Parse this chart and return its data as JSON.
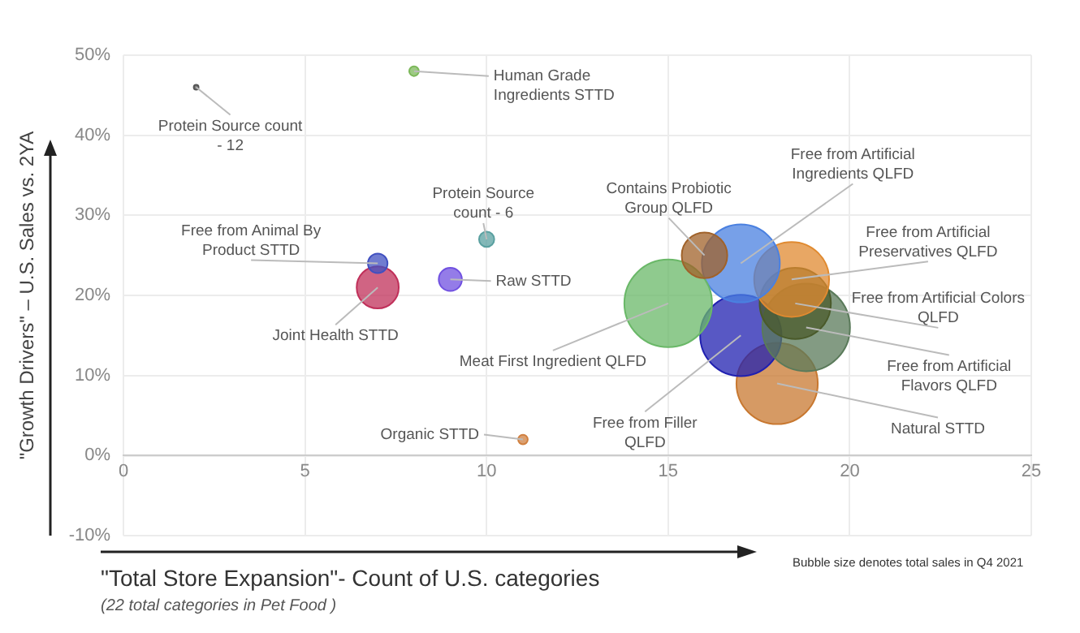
{
  "chart_data": {
    "type": "bubble",
    "xlabel": "\"Total Store Expansion\"- Count of U.S. categories",
    "ylabel": "\"Growth Drivers\" – U.S. Sales vs. 2YA",
    "annotations": [
      "(22 total categories in Pet Food )",
      "Bubble size denotes total sales in Q4 2021"
    ],
    "xlim": [
      0,
      25
    ],
    "xticks": [
      0,
      5,
      10,
      15,
      20,
      25
    ],
    "ylim": [
      -10,
      50
    ],
    "yticks": [
      {
        "value": -10,
        "label": "-10%"
      },
      {
        "value": 0,
        "label": "0%"
      },
      {
        "value": 10,
        "label": "10%"
      },
      {
        "value": 20,
        "label": "20%"
      },
      {
        "value": 30,
        "label": "30%"
      },
      {
        "value": 40,
        "label": "40%"
      },
      {
        "value": 50,
        "label": "50%"
      }
    ],
    "grid": true,
    "series": [
      {
        "name": "Protein Source count - 12",
        "color": "#555555",
        "x": [
          2
        ],
        "values": [
          46
        ],
        "sizes": [
          0.003
        ]
      },
      {
        "name": "Human Grade Ingredients STTD",
        "color": "#7cb85a",
        "x": [
          8
        ],
        "values": [
          48
        ],
        "sizes": [
          0.012
        ]
      },
      {
        "name": "Protein Source count - 6",
        "color": "#5aa0a0",
        "x": [
          10
        ],
        "values": [
          27
        ],
        "sizes": [
          0.03
        ]
      },
      {
        "name": "Free from Animal By Product STTD",
        "color": "#4050c0",
        "x": [
          7
        ],
        "values": [
          24
        ],
        "sizes": [
          0.05
        ]
      },
      {
        "name": "Joint Health STTD",
        "color": "#c0305a",
        "x": [
          7
        ],
        "values": [
          21
        ],
        "sizes": [
          0.23
        ]
      },
      {
        "name": "Raw STTD",
        "color": "#7050e0",
        "x": [
          9
        ],
        "values": [
          22
        ],
        "sizes": [
          0.07
        ]
      },
      {
        "name": "Organic STTD",
        "color": "#d08040",
        "x": [
          11
        ],
        "values": [
          2
        ],
        "sizes": [
          0.012
        ]
      },
      {
        "name": "Contains Probiotic Group QLFD",
        "color": "#a0622a",
        "x": [
          16
        ],
        "values": [
          25
        ],
        "sizes": [
          0.27
        ]
      },
      {
        "name": "Meat First Ingredient QLFD",
        "color": "#6ab868",
        "x": [
          15
        ],
        "values": [
          19
        ],
        "sizes": [
          1
        ]
      },
      {
        "name": "Free from Artificial Ingredients QLFD",
        "color": "#4a80e0",
        "x": [
          17
        ],
        "values": [
          24
        ],
        "sizes": [
          0.79
        ]
      },
      {
        "name": "Free from Artificial Preservatives QLFD",
        "color": "#e08a30",
        "x": [
          18.4
        ],
        "values": [
          22
        ],
        "sizes": [
          0.73
        ]
      },
      {
        "name": "Free from Artificial Colors QLFD",
        "color": "#4a5a2a",
        "x": [
          18.5
        ],
        "values": [
          19
        ],
        "sizes": [
          0.66
        ]
      },
      {
        "name": "Free from Artificial Flavors QLFD",
        "color": "#5a7a5a",
        "x": [
          18.8
        ],
        "values": [
          16
        ],
        "sizes": [
          1
        ]
      },
      {
        "name": "Free from Filler QLFD",
        "color": "#2020b0",
        "x": [
          17
        ],
        "values": [
          15
        ],
        "sizes": [
          0.86
        ]
      },
      {
        "name": "Natural STTD",
        "color": "#c87830",
        "x": [
          18
        ],
        "values": [
          9
        ],
        "sizes": [
          0.86
        ]
      }
    ]
  }
}
